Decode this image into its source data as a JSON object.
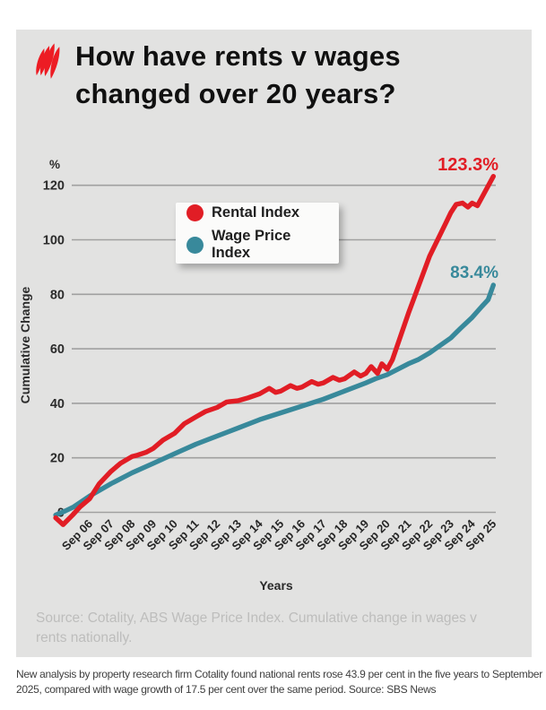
{
  "header": {
    "title_lines": [
      "How have rents v wages",
      "changed over 20 years?"
    ],
    "logo": "sbs-logo"
  },
  "chart_data": {
    "type": "line",
    "title": "How have rents v wages changed over 20 years?",
    "xlabel": "Years",
    "ylabel": "Cumulative Change",
    "y_unit_label": "%",
    "ylim": [
      -8,
      130
    ],
    "grid": true,
    "legend_position": "upper-center",
    "y_ticks": [
      0,
      20,
      40,
      60,
      80,
      100,
      120
    ],
    "x_ticks": [
      "Sep 06",
      "Sep 07",
      "Sep 08",
      "Sep 09",
      "Sep 10",
      "Sep 11",
      "Sep 12",
      "Sep 13",
      "Sep 14",
      "Sep 15",
      "Sep 16",
      "Sep 17",
      "Sep 18",
      "Sep 19",
      "Sep 20",
      "Sep 21",
      "Sep 22",
      "Sep 23",
      "Sep 24",
      "Sep 25"
    ],
    "series": [
      {
        "name": "Rental Index",
        "color": "#e11d25",
        "end_label": "123.3%",
        "final_value": 123.3,
        "points": [
          [
            2005.15,
            -2
          ],
          [
            2005.5,
            -4.5
          ],
          [
            2005.95,
            -1
          ],
          [
            2006.3,
            2
          ],
          [
            2006.75,
            5
          ],
          [
            2007.2,
            10.5
          ],
          [
            2007.75,
            15
          ],
          [
            2008.2,
            18
          ],
          [
            2008.75,
            20.5
          ],
          [
            2009.0,
            21
          ],
          [
            2009.4,
            22
          ],
          [
            2009.75,
            23.5
          ],
          [
            2010.2,
            26.5
          ],
          [
            2010.75,
            29
          ],
          [
            2011.2,
            32.5
          ],
          [
            2011.75,
            35
          ],
          [
            2012.2,
            37
          ],
          [
            2012.75,
            38.5
          ],
          [
            2013.2,
            40.5
          ],
          [
            2013.75,
            41
          ],
          [
            2014.2,
            42
          ],
          [
            2014.75,
            43.5
          ],
          [
            2015.2,
            45.5
          ],
          [
            2015.5,
            44
          ],
          [
            2015.75,
            44.5
          ],
          [
            2016.2,
            46.5
          ],
          [
            2016.5,
            45.5
          ],
          [
            2016.75,
            46
          ],
          [
            2017.2,
            48
          ],
          [
            2017.5,
            47
          ],
          [
            2017.75,
            47.5
          ],
          [
            2018.2,
            49.5
          ],
          [
            2018.5,
            48.5
          ],
          [
            2018.75,
            49
          ],
          [
            2019.2,
            51.5
          ],
          [
            2019.5,
            50
          ],
          [
            2019.75,
            51
          ],
          [
            2020.0,
            53.5
          ],
          [
            2020.3,
            51
          ],
          [
            2020.5,
            54.5
          ],
          [
            2020.75,
            52.5
          ],
          [
            2021.0,
            56
          ],
          [
            2021.75,
            73
          ],
          [
            2022.75,
            94
          ],
          [
            2023.5,
            106
          ],
          [
            2023.75,
            110
          ],
          [
            2024.0,
            113
          ],
          [
            2024.3,
            113.5
          ],
          [
            2024.55,
            112
          ],
          [
            2024.75,
            113.5
          ],
          [
            2025.0,
            112.5
          ],
          [
            2025.75,
            123.3
          ]
        ]
      },
      {
        "name": "Wage Price Index",
        "color": "#38899b",
        "end_label": "83.4%",
        "final_value": 83.4,
        "points": [
          [
            2005.15,
            -1
          ],
          [
            2005.6,
            0.5
          ],
          [
            2006.0,
            2
          ],
          [
            2006.75,
            6
          ],
          [
            2007.75,
            10.5
          ],
          [
            2008.75,
            14.5
          ],
          [
            2009.75,
            18
          ],
          [
            2010.75,
            21.5
          ],
          [
            2011.75,
            25
          ],
          [
            2012.75,
            28
          ],
          [
            2013.75,
            31
          ],
          [
            2014.75,
            34
          ],
          [
            2015.75,
            36.5
          ],
          [
            2016.75,
            39
          ],
          [
            2017.75,
            41.5
          ],
          [
            2018.75,
            44.5
          ],
          [
            2019.75,
            47.5
          ],
          [
            2020.2,
            49
          ],
          [
            2020.75,
            50.5
          ],
          [
            2021.75,
            54.5
          ],
          [
            2022.2,
            56
          ],
          [
            2022.75,
            58.5
          ],
          [
            2023.2,
            61
          ],
          [
            2023.75,
            64
          ],
          [
            2024.2,
            67.5
          ],
          [
            2024.75,
            71.5
          ],
          [
            2025.2,
            75.5
          ],
          [
            2025.5,
            78
          ],
          [
            2025.75,
            83.4
          ]
        ]
      }
    ]
  },
  "source_note": "Source: Cotality, ABS Wage Price Index. Cumulative change in wages v rents nationally.",
  "caption": "New analysis by property research firm Cotality found national rents rose 43.9 per cent in the five years to September 2025, compared with wage growth of 17.5 per cent over the same period. Source: SBS News",
  "colors": {
    "accent_red": "#e11d25",
    "accent_teal": "#38899b",
    "logo_red": "#ed1c24",
    "card_bg": "#e2e2e1",
    "grid": "#a0a0a0",
    "tick_text": "#2b2b2b",
    "title_text": "#101010",
    "source_text": "#bdbdbc",
    "caption_text": "#3e3e3e",
    "legend_bg": "#fbfbfa"
  }
}
